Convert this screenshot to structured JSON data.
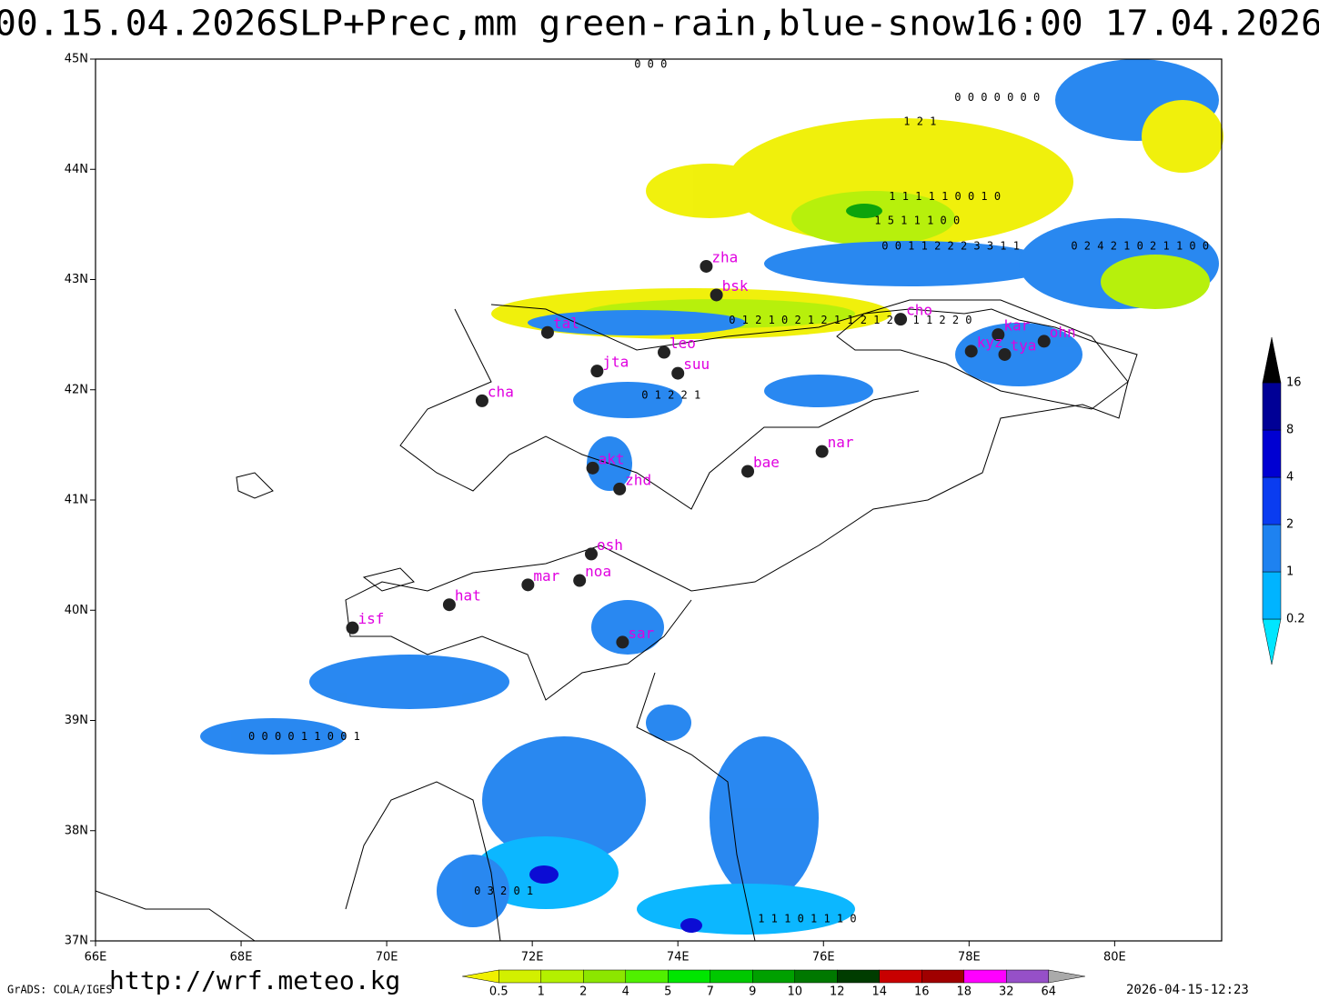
{
  "map": {
    "title": "00.15.04.2026SLP+Prec,mm  green-rain,blue-snow16:00 17.04.2026",
    "xlim": [
      66,
      81.47
    ],
    "ylim": [
      37,
      45
    ],
    "lon_ticks": [
      {
        "value": 66,
        "label": "66E"
      },
      {
        "value": 68,
        "label": "68E"
      },
      {
        "value": 70,
        "label": "70E"
      },
      {
        "value": 72,
        "label": "72E"
      },
      {
        "value": 74,
        "label": "74E"
      },
      {
        "value": 76,
        "label": "76E"
      },
      {
        "value": 78,
        "label": "78E"
      },
      {
        "value": 80,
        "label": "80E"
      }
    ],
    "lat_ticks": [
      {
        "value": 37,
        "label": "37N"
      },
      {
        "value": 38,
        "label": "38N"
      },
      {
        "value": 39,
        "label": "39N"
      },
      {
        "value": 40,
        "label": "40N"
      },
      {
        "value": 41,
        "label": "41N"
      },
      {
        "value": 42,
        "label": "42N"
      },
      {
        "value": 43,
        "label": "43N"
      },
      {
        "value": 44,
        "label": "44N"
      },
      {
        "value": 45,
        "label": "45N"
      }
    ],
    "cities": [
      {
        "name": "zha",
        "lon": 74.39,
        "lat": 43.12
      },
      {
        "name": "bsk",
        "lon": 74.53,
        "lat": 42.86
      },
      {
        "name": "tal",
        "lon": 72.21,
        "lat": 42.52
      },
      {
        "name": "leo",
        "lon": 73.81,
        "lat": 42.34
      },
      {
        "name": "jta",
        "lon": 72.89,
        "lat": 42.17
      },
      {
        "name": "suu",
        "lon": 74.0,
        "lat": 42.15
      },
      {
        "name": "cha",
        "lon": 71.31,
        "lat": 41.9
      },
      {
        "name": "cho",
        "lon": 77.06,
        "lat": 42.64
      },
      {
        "name": "kar",
        "lon": 78.4,
        "lat": 42.5
      },
      {
        "name": "kyz",
        "lon": 78.03,
        "lat": 42.35
      },
      {
        "name": "tya",
        "lon": 78.49,
        "lat": 42.32
      },
      {
        "name": "ohn",
        "lon": 79.03,
        "lat": 42.44
      },
      {
        "name": "akt",
        "lon": 72.83,
        "lat": 41.29
      },
      {
        "name": "zhd",
        "lon": 73.2,
        "lat": 41.1
      },
      {
        "name": "bae",
        "lon": 74.96,
        "lat": 41.26
      },
      {
        "name": "nar",
        "lon": 75.98,
        "lat": 41.44
      },
      {
        "name": "osh",
        "lon": 72.81,
        "lat": 40.51
      },
      {
        "name": "mar",
        "lon": 71.94,
        "lat": 40.23
      },
      {
        "name": "noa",
        "lon": 72.65,
        "lat": 40.27
      },
      {
        "name": "hat",
        "lon": 70.86,
        "lat": 40.05
      },
      {
        "name": "isf",
        "lon": 69.53,
        "lat": 39.84
      },
      {
        "name": "sar",
        "lon": 73.24,
        "lat": 39.71
      }
    ],
    "grid_values": [
      {
        "text": "0 0 0",
        "lon": 73.4,
        "lat": 44.95
      },
      {
        "text": "0 0 0  0 0 0 0",
        "lon": 77.8,
        "lat": 44.65
      },
      {
        "text": "1 2 1",
        "lon": 77.1,
        "lat": 44.43
      },
      {
        "text": "1 1 1 1 1 0 0 1 0",
        "lon": 76.9,
        "lat": 43.75
      },
      {
        "text": "1 5 1 1 1 0 0",
        "lon": 76.7,
        "lat": 43.53
      },
      {
        "text": "0 0 1 1 2 2 2 3 3 1 1",
        "lon": 76.8,
        "lat": 43.3
      },
      {
        "text": "0 2 4 2 1 0 2 1 1 0 0",
        "lon": 79.4,
        "lat": 43.3
      },
      {
        "text": "0 1 2 1 0 2 1 2 1 1 2 1 2 2 1 1 2 2 0",
        "lon": 74.7,
        "lat": 42.63
      },
      {
        "text": "0 1 2 2 1",
        "lon": 73.5,
        "lat": 41.95
      },
      {
        "text": "0 0 0 0 1 1 0 0 1",
        "lon": 68.1,
        "lat": 38.85
      },
      {
        "text": "0 3 2 0 1",
        "lon": 71.2,
        "lat": 37.45
      },
      {
        "text": "1 1 1 0 1 1 1 0",
        "lon": 75.1,
        "lat": 37.2
      }
    ],
    "rain_scale": {
      "levels": [
        0.5,
        1,
        2,
        4,
        5,
        7,
        9,
        10,
        12,
        14,
        16,
        18,
        32,
        64
      ],
      "colors": [
        "#f0f000",
        "#d2f000",
        "#b4f000",
        "#8ce600",
        "#50f000",
        "#00e600",
        "#00c800",
        "#00a000",
        "#007800",
        "#003c00",
        "#c80000",
        "#a00000",
        "#ff00ff",
        "#9650c8",
        "#7d50c8",
        "#aaaaaa"
      ]
    },
    "snow_scale": {
      "levels": [
        0.2,
        1,
        2,
        4,
        8,
        16
      ],
      "colors": [
        "#00e6ff",
        "#00b4ff",
        "#1e82f0",
        "#0a3cf0",
        "#0000d2",
        "#000096",
        "#000000"
      ]
    },
    "footer_left": "GrADS: COLA/IGES",
    "footer_url": "http://wrf.meteo.kg",
    "footer_right": "2026-04-15-12:23"
  }
}
